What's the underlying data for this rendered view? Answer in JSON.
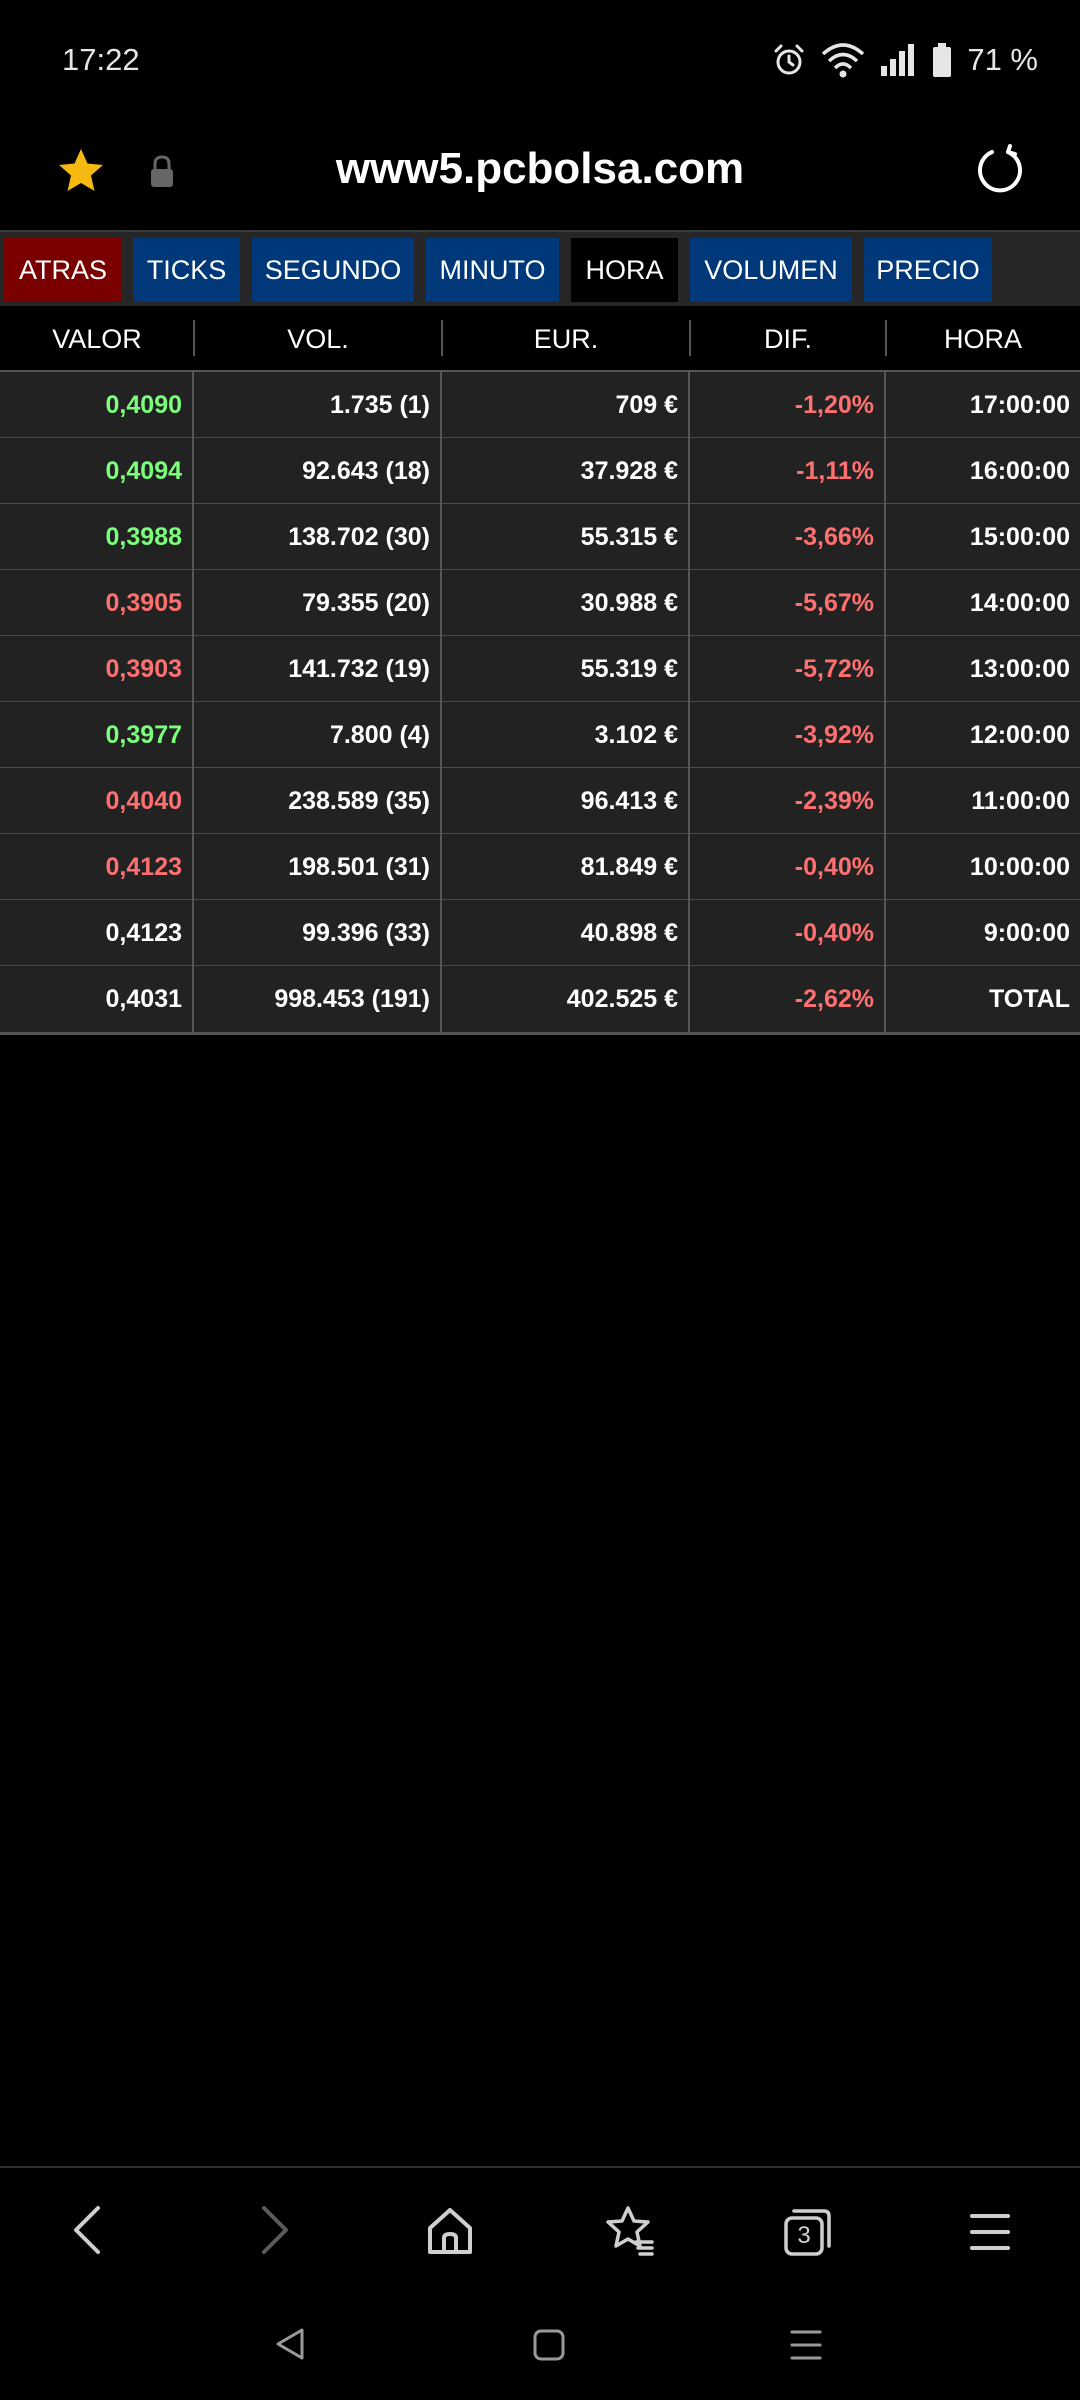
{
  "status_bar": {
    "time": "17:22",
    "battery": "71 %",
    "icons": [
      "alarm-icon",
      "wifi-icon",
      "signal-icon",
      "battery-icon"
    ]
  },
  "address_bar": {
    "url": "www5.pcbolsa.com",
    "icons": [
      "star-icon",
      "lock-icon",
      "reload-icon"
    ]
  },
  "tabs": [
    {
      "label": "ATRAS",
      "kind": "back"
    },
    {
      "label": "TICKS",
      "kind": "blue"
    },
    {
      "label": "SEGUNDO",
      "kind": "blue"
    },
    {
      "label": "MINUTO",
      "kind": "blue"
    },
    {
      "label": "HORA",
      "kind": "active"
    },
    {
      "label": "VOLUMEN",
      "kind": "blue"
    },
    {
      "label": "PRECIO",
      "kind": "blue"
    }
  ],
  "colors": {
    "positive": "#7cff7c",
    "negative": "#ff7070",
    "back_tab": "#7a0000",
    "blue_tab": "#00387a",
    "star": "#f6b912"
  },
  "table": {
    "columns": [
      "VALOR",
      "VOL.",
      "EUR.",
      "DIF.",
      "HORA"
    ],
    "rows": [
      {
        "valor": "0,4090",
        "valor_color": "green",
        "vol": "1.735 (1)",
        "eur": "709 €",
        "dif": "-1,20%",
        "hora": "17:00:00"
      },
      {
        "valor": "0,4094",
        "valor_color": "green",
        "vol": "92.643 (18)",
        "eur": "37.928 €",
        "dif": "-1,11%",
        "hora": "16:00:00"
      },
      {
        "valor": "0,3988",
        "valor_color": "green",
        "vol": "138.702 (30)",
        "eur": "55.315 €",
        "dif": "-3,66%",
        "hora": "15:00:00"
      },
      {
        "valor": "0,3905",
        "valor_color": "red",
        "vol": "79.355 (20)",
        "eur": "30.988 €",
        "dif": "-5,67%",
        "hora": "14:00:00"
      },
      {
        "valor": "0,3903",
        "valor_color": "red",
        "vol": "141.732 (19)",
        "eur": "55.319 €",
        "dif": "-5,72%",
        "hora": "13:00:00"
      },
      {
        "valor": "0,3977",
        "valor_color": "green",
        "vol": "7.800 (4)",
        "eur": "3.102 €",
        "dif": "-3,92%",
        "hora": "12:00:00"
      },
      {
        "valor": "0,4040",
        "valor_color": "red",
        "vol": "238.589 (35)",
        "eur": "96.413 €",
        "dif": "-2,39%",
        "hora": "11:00:00"
      },
      {
        "valor": "0,4123",
        "valor_color": "red",
        "vol": "198.501 (31)",
        "eur": "81.849 €",
        "dif": "-0,40%",
        "hora": "10:00:00"
      },
      {
        "valor": "0,4123",
        "valor_color": "white",
        "vol": "99.396 (33)",
        "eur": "40.898 €",
        "dif": "-0,40%",
        "hora": "9:00:00"
      },
      {
        "valor": "0,4031",
        "valor_color": "white",
        "vol": "998.453 (191)",
        "eur": "402.525 €",
        "dif": "-2,62%",
        "hora": "TOTAL"
      }
    ]
  },
  "browser_nav": {
    "icons": [
      "back-icon",
      "forward-icon",
      "home-icon",
      "bookmarks-icon",
      "tabs-icon",
      "menu-icon"
    ],
    "tab_count": "3"
  },
  "system_nav": {
    "icons": [
      "system-back-icon",
      "system-home-icon",
      "system-recents-icon"
    ]
  }
}
